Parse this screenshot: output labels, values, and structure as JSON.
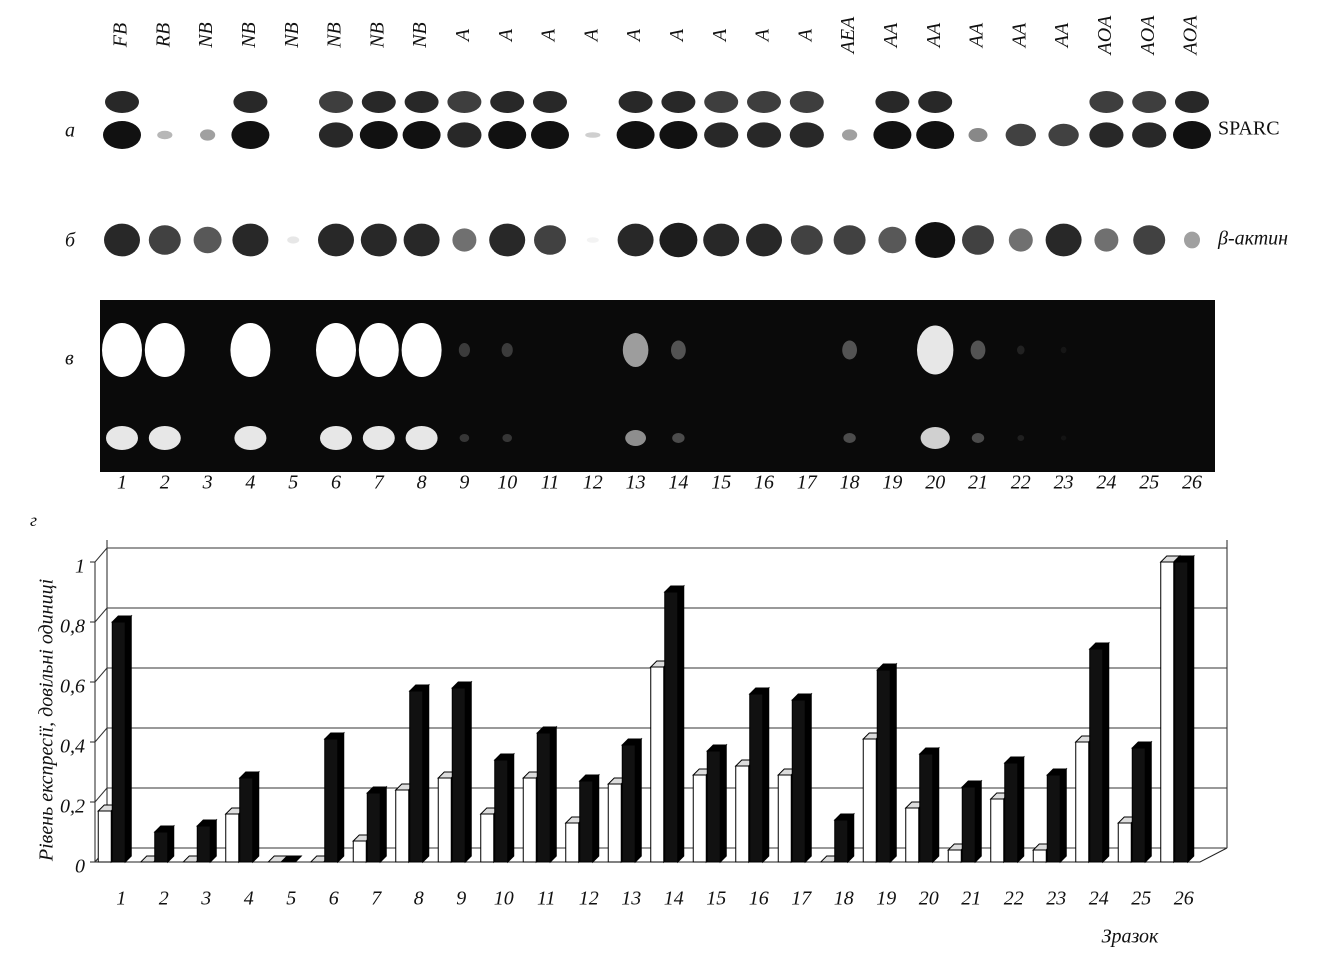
{
  "gel": {
    "lane_labels": [
      "FB",
      "RB",
      "NB",
      "NB",
      "NB",
      "NB",
      "NB",
      "NB",
      "A",
      "A",
      "A",
      "A",
      "A",
      "A",
      "A",
      "A",
      "A",
      "AEA",
      "AA",
      "AA",
      "AA",
      "AA",
      "AA",
      "AOA",
      "AOA",
      "AOA"
    ],
    "lane_numbers": [
      "1",
      "2",
      "3",
      "4",
      "5",
      "6",
      "7",
      "8",
      "9",
      "10",
      "11",
      "12",
      "13",
      "14",
      "15",
      "16",
      "17",
      "18",
      "19",
      "20",
      "21",
      "22",
      "23",
      "24",
      "25",
      "26"
    ],
    "panel_labels": [
      "а",
      "б",
      "в"
    ],
    "band_labels": [
      "SPARC",
      "β-актин"
    ]
  },
  "chart_data": {
    "type": "bar",
    "label": "г",
    "ylabel": "Рівень експресії, довільні одиниці",
    "xlabel": "Зразок",
    "categories": [
      "1",
      "2",
      "3",
      "4",
      "5",
      "6",
      "7",
      "8",
      "9",
      "10",
      "11",
      "12",
      "13",
      "14",
      "15",
      "16",
      "17",
      "18",
      "19",
      "20",
      "21",
      "22",
      "23",
      "24",
      "25",
      "26"
    ],
    "series": [
      {
        "color": "#ffffff",
        "values": [
          0.17,
          0,
          0,
          0.16,
          0,
          0,
          0.07,
          0.24,
          0.28,
          0.16,
          0.28,
          0.13,
          0.26,
          0.65,
          0.29,
          0.32,
          0.29,
          0,
          0.41,
          0.18,
          0.04,
          0.21,
          0.04,
          0.4,
          0.13,
          1
        ]
      },
      {
        "color": "#111111",
        "values": [
          0.8,
          0.1,
          0.12,
          0.28,
          0,
          0.41,
          0.23,
          0.57,
          0.58,
          0.34,
          0.43,
          0.27,
          0.39,
          0.9,
          0.37,
          0.56,
          0.54,
          0.14,
          0.64,
          0.36,
          0.25,
          0.33,
          0.29,
          0.71,
          0.38,
          1
        ]
      }
    ],
    "ylim": [
      0,
      1
    ],
    "yticks": [
      0,
      {
        "value": 0.2,
        "label": "0,2"
      },
      {
        "value": 0.4,
        "label": "0,4"
      },
      {
        "value": 0.6,
        "label": "0,6"
      },
      {
        "value": 0.8,
        "label": "0,8"
      },
      1
    ],
    "grid": true
  }
}
